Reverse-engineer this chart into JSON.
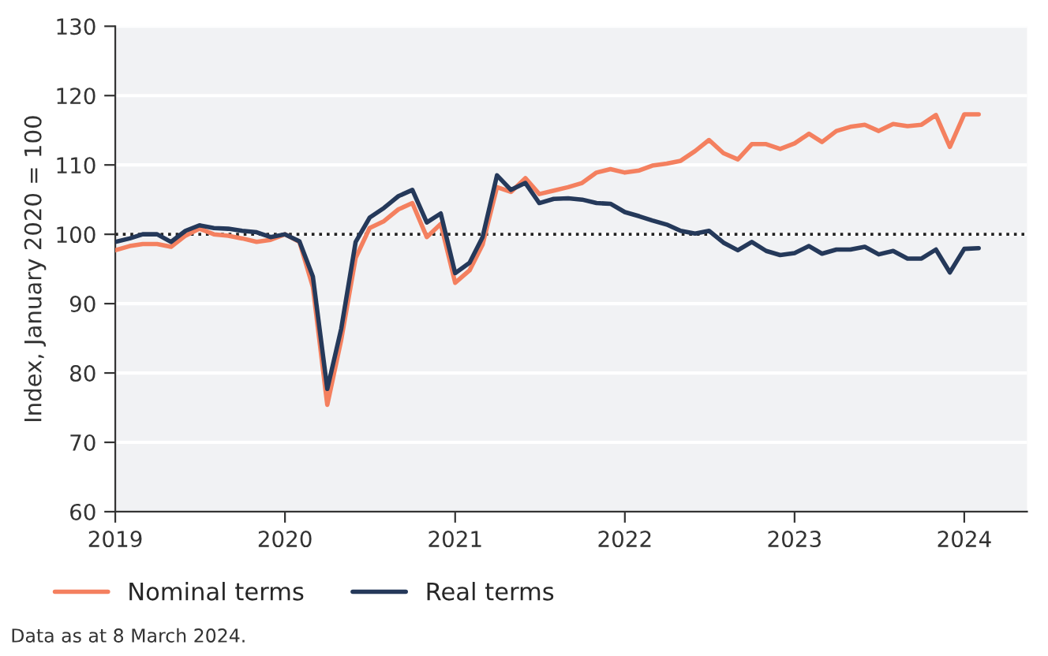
{
  "chart_data": {
    "type": "line",
    "ylabel": "Index, January 2020 = 100",
    "x": [
      "2019-01",
      "2019-02",
      "2019-03",
      "2019-04",
      "2019-05",
      "2019-06",
      "2019-07",
      "2019-08",
      "2019-09",
      "2019-10",
      "2019-11",
      "2019-12",
      "2020-01",
      "2020-02",
      "2020-03",
      "2020-04",
      "2020-05",
      "2020-06",
      "2020-07",
      "2020-08",
      "2020-09",
      "2020-10",
      "2020-11",
      "2020-12",
      "2021-01",
      "2021-02",
      "2021-03",
      "2021-04",
      "2021-05",
      "2021-06",
      "2021-07",
      "2021-08",
      "2021-09",
      "2021-10",
      "2021-11",
      "2021-12",
      "2022-01",
      "2022-02",
      "2022-03",
      "2022-04",
      "2022-05",
      "2022-06",
      "2022-07",
      "2022-08",
      "2022-09",
      "2022-10",
      "2022-11",
      "2022-12",
      "2023-01",
      "2023-02",
      "2023-03",
      "2023-04",
      "2023-05",
      "2023-06",
      "2023-07",
      "2023-08",
      "2023-09",
      "2023-10",
      "2023-11",
      "2023-12",
      "2024-01",
      "2024-02"
    ],
    "series": [
      {
        "name": "Nominal terms",
        "color": "#f4805f",
        "values": [
          97.7,
          98.3,
          98.6,
          98.6,
          98.2,
          99.8,
          100.8,
          100,
          99.8,
          99.4,
          98.9,
          99.2,
          100,
          98.9,
          92.4,
          75.4,
          84.8,
          96.6,
          100.9,
          101.9,
          103.6,
          104.5,
          99.6,
          101.5,
          93,
          94.8,
          98.5,
          106.8,
          106.1,
          108.1,
          105.8,
          106.3,
          106.8,
          107.4,
          108.9,
          109.4,
          108.9,
          109.2,
          109.9,
          110.2,
          110.6,
          112,
          113.6,
          111.7,
          110.8,
          113,
          113,
          112.3,
          113.1,
          114.5,
          113.3,
          114.9,
          115.5,
          115.8,
          114.9,
          115.9,
          115.6,
          115.8,
          117.2,
          112.6,
          117.3,
          117.3
        ]
      },
      {
        "name": "Real terms",
        "color": "#25395a",
        "values": [
          98.9,
          99.4,
          100,
          100,
          98.9,
          100.5,
          101.3,
          100.9,
          100.8,
          100.5,
          100.3,
          99.6,
          100,
          99,
          93.9,
          77.7,
          86.4,
          98.9,
          102.4,
          103.8,
          105.5,
          106.4,
          101.7,
          103,
          94.4,
          95.9,
          99.6,
          108.5,
          106.4,
          107.4,
          104.5,
          105.1,
          105.2,
          105,
          104.5,
          104.4,
          103.2,
          102.6,
          102,
          101.4,
          100.5,
          100.1,
          100.5,
          98.8,
          97.7,
          98.9,
          97.6,
          97,
          97.3,
          98.3,
          97.2,
          97.8,
          97.8,
          98.2,
          97.1,
          97.6,
          96.5,
          96.5,
          97.8,
          94.5,
          97.9,
          98
        ]
      }
    ],
    "xlim": [
      "2019-01",
      "2024-05-15"
    ],
    "xticks": [
      {
        "value": "2019",
        "label": "2019"
      },
      {
        "value": "2020",
        "label": "2020"
      },
      {
        "value": "2021",
        "label": "2021"
      },
      {
        "value": "2022",
        "label": "2022"
      },
      {
        "value": "2023",
        "label": "2023"
      },
      {
        "value": "2024",
        "label": "2024"
      }
    ],
    "ylim": [
      60,
      130
    ],
    "yticks": [
      60,
      70,
      80,
      90,
      100,
      110,
      120,
      130
    ],
    "ref_lines": [
      {
        "axis": "y",
        "value": 100,
        "color": "#222222",
        "line_style": "dotted"
      }
    ],
    "grid": "y",
    "legend": "bottom",
    "marker": "none",
    "line_style": "solid",
    "annotations": [
      "Data as at 8 March 2024."
    ]
  }
}
